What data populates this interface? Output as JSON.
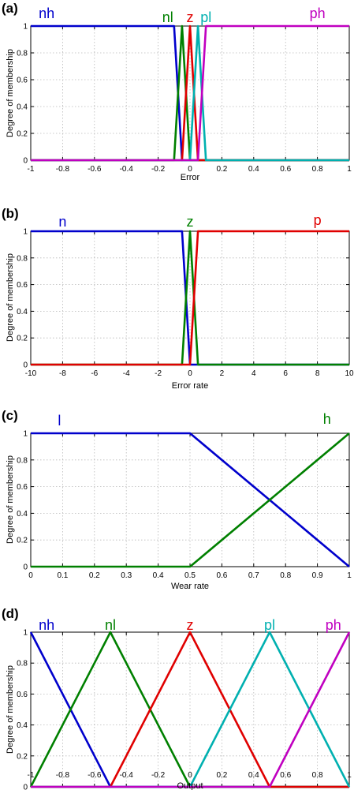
{
  "chart_data": [
    {
      "type": "line",
      "panel": "(a)",
      "xlabel": "Error",
      "ylabel": "Degree of membership",
      "xlim": [
        -1,
        1
      ],
      "ylim": [
        0,
        1
      ],
      "xticks": [
        "-1",
        "-0.8",
        "-0.6",
        "-0.4",
        "-0.2",
        "0",
        "0.2",
        "0.4",
        "0.6",
        "0.8",
        "1"
      ],
      "yticks": [
        "0",
        "0.2",
        "0.4",
        "0.6",
        "0.8",
        "1"
      ],
      "grid": true,
      "series": [
        {
          "name": "nh",
          "color": "#0000cc",
          "x": [
            -1,
            -0.1,
            -0.05,
            1
          ],
          "y": [
            1,
            1,
            0,
            0
          ]
        },
        {
          "name": "nl",
          "color": "#008000",
          "x": [
            -1,
            -0.1,
            -0.05,
            0,
            1
          ],
          "y": [
            0,
            0,
            1,
            0,
            0
          ]
        },
        {
          "name": "z",
          "color": "#e00000",
          "x": [
            -1,
            -0.05,
            0,
            0.05,
            1
          ],
          "y": [
            0,
            0,
            1,
            0,
            0
          ]
        },
        {
          "name": "pl",
          "color": "#00b0b0",
          "x": [
            -1,
            0,
            0.05,
            0.1,
            1
          ],
          "y": [
            0,
            0,
            1,
            0,
            0
          ]
        },
        {
          "name": "ph",
          "color": "#c000c0",
          "x": [
            -1,
            0.05,
            0.1,
            1
          ],
          "y": [
            0,
            0,
            1,
            1
          ]
        }
      ]
    },
    {
      "type": "line",
      "panel": "(b)",
      "xlabel": "Error rate",
      "ylabel": "Degree of membership",
      "xlim": [
        -10,
        10
      ],
      "ylim": [
        0,
        1
      ],
      "xticks": [
        "-10",
        "-8",
        "-6",
        "-4",
        "-2",
        "0",
        "2",
        "4",
        "6",
        "8",
        "10"
      ],
      "yticks": [
        "0",
        "0.2",
        "0.4",
        "0.6",
        "0.8",
        "1"
      ],
      "grid": true,
      "series": [
        {
          "name": "n",
          "color": "#0000cc",
          "x": [
            -10,
            -0.5,
            0,
            10
          ],
          "y": [
            1,
            1,
            0,
            0
          ]
        },
        {
          "name": "z",
          "color": "#008000",
          "x": [
            -10,
            -0.5,
            0,
            0.5,
            10
          ],
          "y": [
            0,
            0,
            1,
            0,
            0
          ]
        },
        {
          "name": "p",
          "color": "#e00000",
          "x": [
            -10,
            0,
            0.5,
            10
          ],
          "y": [
            0,
            0,
            1,
            1
          ]
        }
      ]
    },
    {
      "type": "line",
      "panel": "(c)",
      "xlabel": "Wear rate",
      "ylabel": "Degree of membership",
      "xlim": [
        0,
        1
      ],
      "ylim": [
        0,
        1
      ],
      "xticks": [
        "0",
        "0.1",
        "0.2",
        "0.3",
        "0.4",
        "0.5",
        "0.6",
        "0.7",
        "0.8",
        "0.9",
        "1"
      ],
      "yticks": [
        "0",
        "0.2",
        "0.4",
        "0.6",
        "0.8",
        "1"
      ],
      "grid": true,
      "series": [
        {
          "name": "l",
          "color": "#0000cc",
          "x": [
            0,
            0.5,
            1
          ],
          "y": [
            1,
            1,
            0
          ]
        },
        {
          "name": "h",
          "color": "#008000",
          "x": [
            0,
            0.5,
            1
          ],
          "y": [
            0,
            0,
            1
          ]
        }
      ]
    },
    {
      "type": "line",
      "panel": "(d)",
      "xlabel": "Output",
      "ylabel": "Degree of membership",
      "xlim": [
        -1,
        1
      ],
      "ylim": [
        0,
        1
      ],
      "xticks": [
        "-1",
        "-0.8",
        "-0.6",
        "-0.4",
        "-0.2",
        "0",
        "0.2",
        "0.4",
        "0.6",
        "0.8",
        "1"
      ],
      "yticks": [
        "0",
        "0.2",
        "0.4",
        "0.6",
        "0.8",
        "1"
      ],
      "grid": true,
      "series": [
        {
          "name": "nh",
          "color": "#0000cc",
          "x": [
            -1,
            -0.5,
            1
          ],
          "y": [
            1,
            0,
            0
          ]
        },
        {
          "name": "nl",
          "color": "#008000",
          "x": [
            -1,
            -0.5,
            0,
            1
          ],
          "y": [
            0,
            1,
            0,
            0
          ]
        },
        {
          "name": "z",
          "color": "#e00000",
          "x": [
            -1,
            -0.5,
            0,
            0.5,
            1
          ],
          "y": [
            0,
            0,
            1,
            0,
            0
          ]
        },
        {
          "name": "pl",
          "color": "#00b0b0",
          "x": [
            -1,
            0,
            0.5,
            1,
            1
          ],
          "y": [
            0,
            0,
            1,
            0,
            0
          ]
        },
        {
          "name": "ph",
          "color": "#c000c0",
          "x": [
            -1,
            0.5,
            1
          ],
          "y": [
            0,
            0,
            1
          ]
        }
      ]
    }
  ]
}
